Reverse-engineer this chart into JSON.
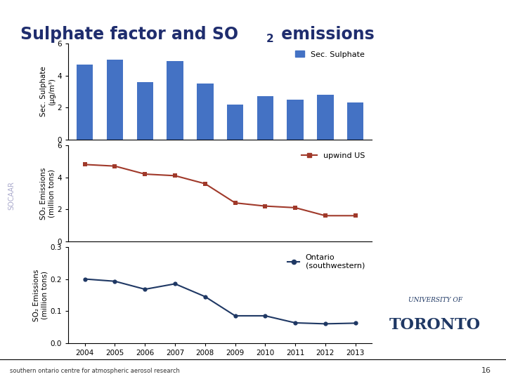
{
  "years": [
    2004,
    2005,
    2006,
    2007,
    2008,
    2009,
    2010,
    2011,
    2012,
    2013
  ],
  "sulphate_bars": [
    4.7,
    5.0,
    3.6,
    4.9,
    3.5,
    2.2,
    2.7,
    2.5,
    2.8,
    2.3
  ],
  "sulphate_color": "#4472C4",
  "sulphate_legend": "Sec. Sulphate",
  "sulphate_ylabel": "Sec. Sulphate\n(μg/m³)",
  "sulphate_ylim": [
    0,
    6
  ],
  "sulphate_yticks": [
    0,
    2,
    4,
    6
  ],
  "upwind_us": [
    4.8,
    4.7,
    4.2,
    4.1,
    3.6,
    2.4,
    2.2,
    2.1,
    1.6,
    1.6
  ],
  "upwind_color": "#A0392A",
  "upwind_legend": "upwind US",
  "upwind_ylabel": "SO₂ Emissions\n(million tons)",
  "upwind_ylim": [
    0,
    6
  ],
  "upwind_yticks": [
    0,
    2,
    4,
    6
  ],
  "ontario": [
    0.2,
    0.193,
    0.168,
    0.185,
    0.145,
    0.085,
    0.085,
    0.063,
    0.06,
    0.062
  ],
  "ontario_color": "#1F3864",
  "ontario_legend": "Ontario\n(southwestern)",
  "ontario_ylabel": "SO₂ Emissions\n(million tons)",
  "ontario_ylim": [
    0,
    0.3
  ],
  "ontario_yticks": [
    0,
    0.1,
    0.2,
    0.3
  ],
  "title_color": "#1F2D6E",
  "header_dark": "#0D1B4B",
  "header_light": "#00AEEF",
  "bg_color": "#FFFFFF",
  "footer_text": "southern ontario centre for atmospheric aerosol research",
  "slide_number": "16",
  "socaar_text": "SOCAAR",
  "left_bar_color": "#4472C4"
}
